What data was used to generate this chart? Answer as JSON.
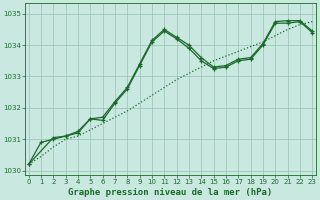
{
  "xlabel": "Graphe pression niveau de la mer (hPa)",
  "background_color": "#c8e8e0",
  "grid_color": "#9bbfb5",
  "line_color": "#1a6b2a",
  "yticks": [
    1030,
    1031,
    1032,
    1033,
    1034,
    1035
  ],
  "xticks": [
    0,
    1,
    2,
    3,
    4,
    5,
    6,
    7,
    8,
    9,
    10,
    11,
    12,
    13,
    14,
    15,
    16,
    17,
    18,
    19,
    20,
    21,
    22,
    23
  ],
  "trend_x": [
    0,
    1,
    2,
    3,
    4,
    5,
    6,
    7,
    8,
    9,
    10,
    11,
    12,
    13,
    14,
    15,
    16,
    17,
    18,
    19,
    20,
    21,
    22,
    23
  ],
  "trend_y": [
    1030.2,
    1030.45,
    1030.75,
    1031.0,
    1031.1,
    1031.3,
    1031.5,
    1031.7,
    1031.9,
    1032.15,
    1032.4,
    1032.65,
    1032.9,
    1033.1,
    1033.3,
    1033.5,
    1033.65,
    1033.8,
    1033.95,
    1034.1,
    1034.3,
    1034.5,
    1034.65,
    1034.75
  ],
  "jagged1_x": [
    0,
    1,
    2,
    3,
    4,
    5,
    6,
    7,
    8,
    9,
    10,
    11,
    12,
    13,
    14,
    15,
    16,
    17,
    18,
    19,
    20,
    21,
    22,
    23
  ],
  "jagged1_y": [
    1030.2,
    1030.9,
    1031.0,
    1031.1,
    1031.2,
    1031.65,
    1031.6,
    1032.15,
    1032.6,
    1033.35,
    1034.1,
    1034.45,
    1034.2,
    1033.9,
    1033.5,
    1033.25,
    1033.3,
    1033.5,
    1033.55,
    1034.0,
    1034.7,
    1034.7,
    1034.75,
    1034.4
  ],
  "jagged2_x": [
    0,
    2,
    3,
    4,
    5,
    6,
    7,
    8,
    9,
    10,
    11,
    12,
    13,
    14,
    15,
    16,
    17,
    18,
    19,
    20,
    21,
    22,
    23
  ],
  "jagged2_y": [
    1030.2,
    1031.05,
    1031.1,
    1031.25,
    1031.65,
    1031.7,
    1032.2,
    1032.65,
    1033.4,
    1034.15,
    1034.5,
    1034.25,
    1034.0,
    1033.6,
    1033.3,
    1033.35,
    1033.55,
    1033.6,
    1034.05,
    1034.75,
    1034.78,
    1034.78,
    1034.45
  ]
}
